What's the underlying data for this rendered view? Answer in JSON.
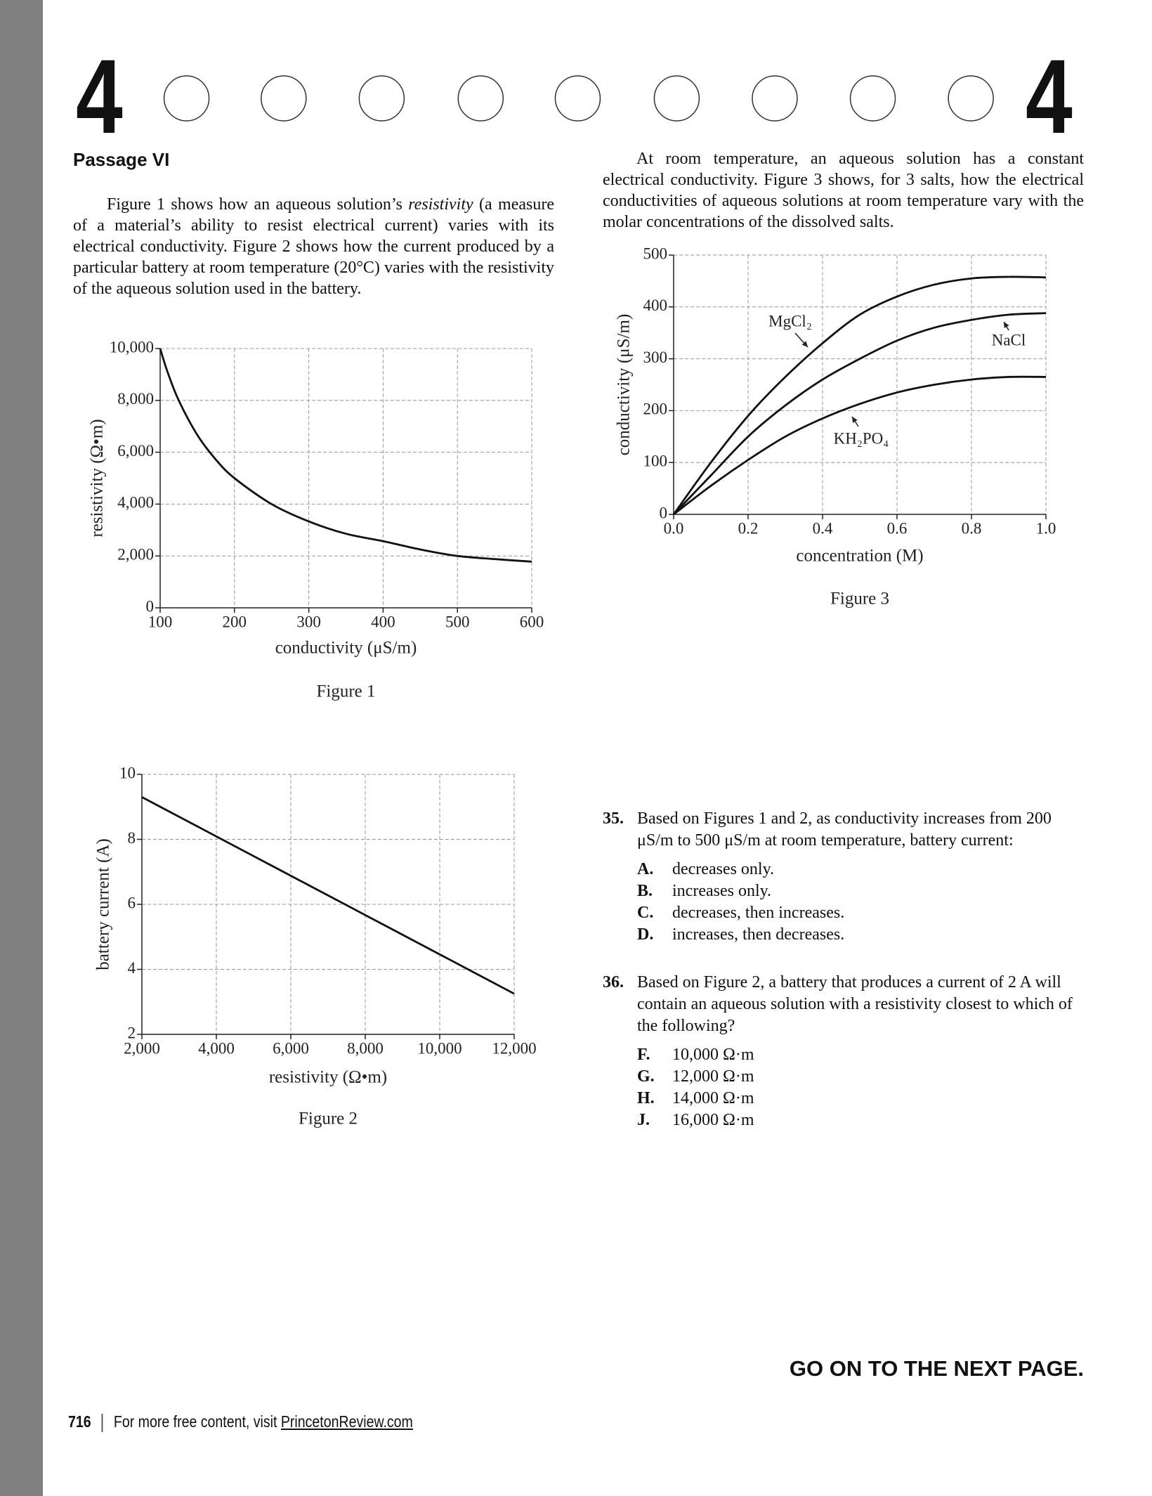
{
  "header": {
    "left_number": "4",
    "right_number": "4"
  },
  "passage": {
    "title": "Passage VI",
    "paragraph_1": [
      "Figure 1 shows how an aqueous solution’s ",
      "resistivity",
      " (a measure of a material’s ability to resist electrical current) varies with its electrical conductivity. Figure 2 shows how the current produced by a particular battery at room temperature (20°C) varies with the resistivity of the aqueous solution used in the battery."
    ],
    "paragraph_2": "At room temperature, an aqueous solution has a constant electrical conductivity. Figure 3 shows, for 3 salts, how the electrical conductivities of aqueous solutions at room temperature vary with the molar concentrations of the dissolved salts."
  },
  "chart_data": [
    {
      "type": "line",
      "caption": "Figure 1",
      "x_label": "conductivity (μS/m)",
      "y_label": "resistivity (Ω•m)",
      "x": [
        100,
        110,
        125,
        150,
        175,
        200,
        250,
        300,
        350,
        400,
        450,
        500,
        550,
        600
      ],
      "series": [
        {
          "color": "#111111",
          "values": [
            10000,
            9091,
            8000,
            6667,
            5714,
            5000,
            4000,
            3333,
            2857,
            2570,
            2250,
            2000,
            1880,
            1780
          ]
        }
      ],
      "xlim": [
        100,
        600
      ],
      "xticks": [
        100,
        200,
        300,
        400,
        500,
        600
      ],
      "ylim": [
        0,
        10000
      ],
      "yticks": [
        0,
        {
          "value": 2000,
          "label": "2,000"
        },
        {
          "value": 4000,
          "label": "4,000"
        },
        {
          "value": 6000,
          "label": "6,000"
        },
        {
          "value": 8000,
          "label": "8,000"
        },
        {
          "value": 10000,
          "label": "10,000"
        }
      ],
      "grid": true
    },
    {
      "type": "line",
      "caption": "Figure 2",
      "x_label": "resistivity (Ω•m)",
      "y_label": "battery current (A)",
      "x": [
        2000,
        12000
      ],
      "series": [
        {
          "color": "#111111",
          "values": [
            9.3,
            3.25
          ]
        }
      ],
      "xlim": [
        2000,
        12000
      ],
      "xticks": [
        {
          "value": 2000,
          "label": "2,000"
        },
        {
          "value": 4000,
          "label": "4,000"
        },
        {
          "value": 6000,
          "label": "6,000"
        },
        {
          "value": 8000,
          "label": "8,000"
        },
        {
          "value": 10000,
          "label": "10,000"
        },
        {
          "value": 12000,
          "label": "12,000"
        }
      ],
      "ylim": [
        2,
        10
      ],
      "yticks": [
        2,
        4,
        6,
        8,
        10
      ],
      "grid": true
    },
    {
      "type": "line",
      "caption": "Figure 3",
      "x_label": "concentration (M)",
      "y_label": "conductivity (μS/m)",
      "x": [
        0,
        0.1,
        0.2,
        0.3,
        0.4,
        0.5,
        0.6,
        0.7,
        0.8,
        0.9,
        1.0
      ],
      "series": [
        {
          "name": "MgCl₂",
          "color": "#111111",
          "values": [
            0,
            100,
            190,
            265,
            330,
            385,
            420,
            443,
            455,
            458,
            457
          ]
        },
        {
          "name": "NaCl",
          "color": "#111111",
          "values": [
            0,
            75,
            150,
            210,
            260,
            300,
            335,
            360,
            375,
            385,
            388
          ]
        },
        {
          "name": "KH₂PO₄",
          "color": "#111111",
          "values": [
            0,
            55,
            105,
            150,
            185,
            213,
            235,
            250,
            260,
            265,
            265
          ]
        }
      ],
      "xlim": [
        0,
        1
      ],
      "xticks": [
        {
          "value": 0,
          "label": "0.0"
        },
        0.2,
        0.4,
        0.6,
        0.8,
        {
          "value": 1,
          "label": "1.0"
        }
      ],
      "ylim": [
        0,
        500
      ],
      "yticks": [
        0,
        100,
        200,
        300,
        400,
        500
      ],
      "grid": true
    }
  ],
  "questions": [
    {
      "number": "35.",
      "text": "Based on Figures 1 and 2, as conductivity increases from 200 μS/m to 500 μS/m at room temperature, battery current:",
      "options": [
        {
          "letter": "A.",
          "text": "decreases only."
        },
        {
          "letter": "B.",
          "text": "increases only."
        },
        {
          "letter": "C.",
          "text": "decreases, then increases."
        },
        {
          "letter": "D.",
          "text": "increases, then decreases."
        }
      ]
    },
    {
      "number": "36.",
      "text": "Based on Figure 2, a battery that produces a current of 2 A will contain an aqueous solution with a resistivity closest to which of the following?",
      "options": [
        {
          "letter": "F.",
          "text": "10,000 Ω·m"
        },
        {
          "letter": "G.",
          "text": "12,000 Ω·m"
        },
        {
          "letter": "H.",
          "text": "14,000 Ω·m"
        },
        {
          "letter": "J.",
          "text": "16,000 Ω·m"
        }
      ]
    }
  ],
  "footer": {
    "go_on": "GO ON TO THE NEXT PAGE.",
    "page_number": "716",
    "text": "For more free content, visit ",
    "link": "PrincetonReview.com"
  }
}
